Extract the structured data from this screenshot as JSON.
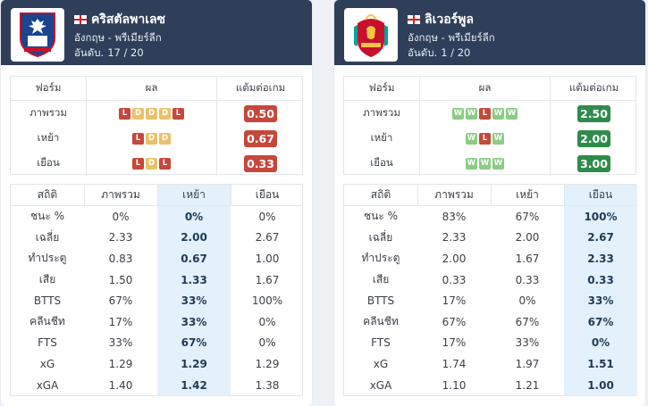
{
  "teams": [
    {
      "name": "คริสตัลพาเลซ",
      "league": "อังกฤษ - พรีเมียร์ลีก",
      "rank_label": "อันดับ.",
      "rank_value": "17 / 20",
      "logo_icon": "crystal-palace-crest-icon",
      "form_headers": [
        "ฟอร์ม",
        "ผล",
        "แต้มต่อเกม"
      ],
      "form_rows": [
        {
          "label": "ภาพรวม",
          "results": [
            "L",
            "D",
            "D",
            "D",
            "L"
          ],
          "ppg": "0.50",
          "color": "red"
        },
        {
          "label": "เหย้า",
          "results": [
            "L",
            "D",
            "D"
          ],
          "ppg": "0.67",
          "color": "red"
        },
        {
          "label": "เยือน",
          "results": [
            "L",
            "D",
            "L"
          ],
          "ppg": "0.33",
          "color": "red"
        }
      ],
      "stat_headers": [
        "สถิติ",
        "ภาพรวม",
        "เหย้า",
        "เยือน"
      ],
      "highlight_col": 2,
      "stat_rows": [
        {
          "label": "ชนะ %",
          "values": [
            "0%",
            "0%",
            "0%"
          ]
        },
        {
          "label": "เฉลี่ย",
          "values": [
            "2.33",
            "2.00",
            "2.67"
          ]
        },
        {
          "label": "ทำประตู",
          "values": [
            "0.83",
            "0.67",
            "1.00"
          ]
        },
        {
          "label": "เสีย",
          "values": [
            "1.50",
            "1.33",
            "1.67"
          ]
        },
        {
          "label": "BTTS",
          "values": [
            "67%",
            "33%",
            "100%"
          ]
        },
        {
          "label": "คลีนชีท",
          "values": [
            "17%",
            "33%",
            "0%"
          ]
        },
        {
          "label": "FTS",
          "values": [
            "33%",
            "67%",
            "0%"
          ]
        },
        {
          "label": "xG",
          "values": [
            "1.29",
            "1.29",
            "1.29"
          ]
        },
        {
          "label": "xGA",
          "values": [
            "1.40",
            "1.42",
            "1.38"
          ]
        }
      ]
    },
    {
      "name": "ลิเวอร์พูล",
      "league": "อังกฤษ - พรีเมียร์ลีก",
      "rank_label": "อันดับ.",
      "rank_value": "1 / 20",
      "logo_icon": "liverpool-crest-icon",
      "form_headers": [
        "ฟอร์ม",
        "ผล",
        "แต้มต่อเกม"
      ],
      "form_rows": [
        {
          "label": "ภาพรวม",
          "results": [
            "W",
            "W",
            "L",
            "W",
            "W"
          ],
          "ppg": "2.50",
          "color": "green"
        },
        {
          "label": "เหย้า",
          "results": [
            "W",
            "L",
            "W"
          ],
          "ppg": "2.00",
          "color": "green"
        },
        {
          "label": "เยือน",
          "results": [
            "W",
            "W",
            "W"
          ],
          "ppg": "3.00",
          "color": "green"
        }
      ],
      "stat_headers": [
        "สถิติ",
        "ภาพรวม",
        "เหย้า",
        "เยือน"
      ],
      "highlight_col": 3,
      "stat_rows": [
        {
          "label": "ชนะ %",
          "values": [
            "83%",
            "67%",
            "100%"
          ]
        },
        {
          "label": "เฉลี่ย",
          "values": [
            "2.33",
            "2.00",
            "2.67"
          ]
        },
        {
          "label": "ทำประตู",
          "values": [
            "2.00",
            "1.67",
            "2.33"
          ]
        },
        {
          "label": "เสีย",
          "values": [
            "0.33",
            "0.33",
            "0.33"
          ]
        },
        {
          "label": "BTTS",
          "values": [
            "17%",
            "0%",
            "33%"
          ]
        },
        {
          "label": "คลีนชีท",
          "values": [
            "67%",
            "67%",
            "67%"
          ]
        },
        {
          "label": "FTS",
          "values": [
            "17%",
            "33%",
            "0%"
          ]
        },
        {
          "label": "xG",
          "values": [
            "1.74",
            "1.97",
            "1.51"
          ]
        },
        {
          "label": "xGA",
          "values": [
            "1.10",
            "1.21",
            "1.00"
          ]
        }
      ]
    }
  ]
}
